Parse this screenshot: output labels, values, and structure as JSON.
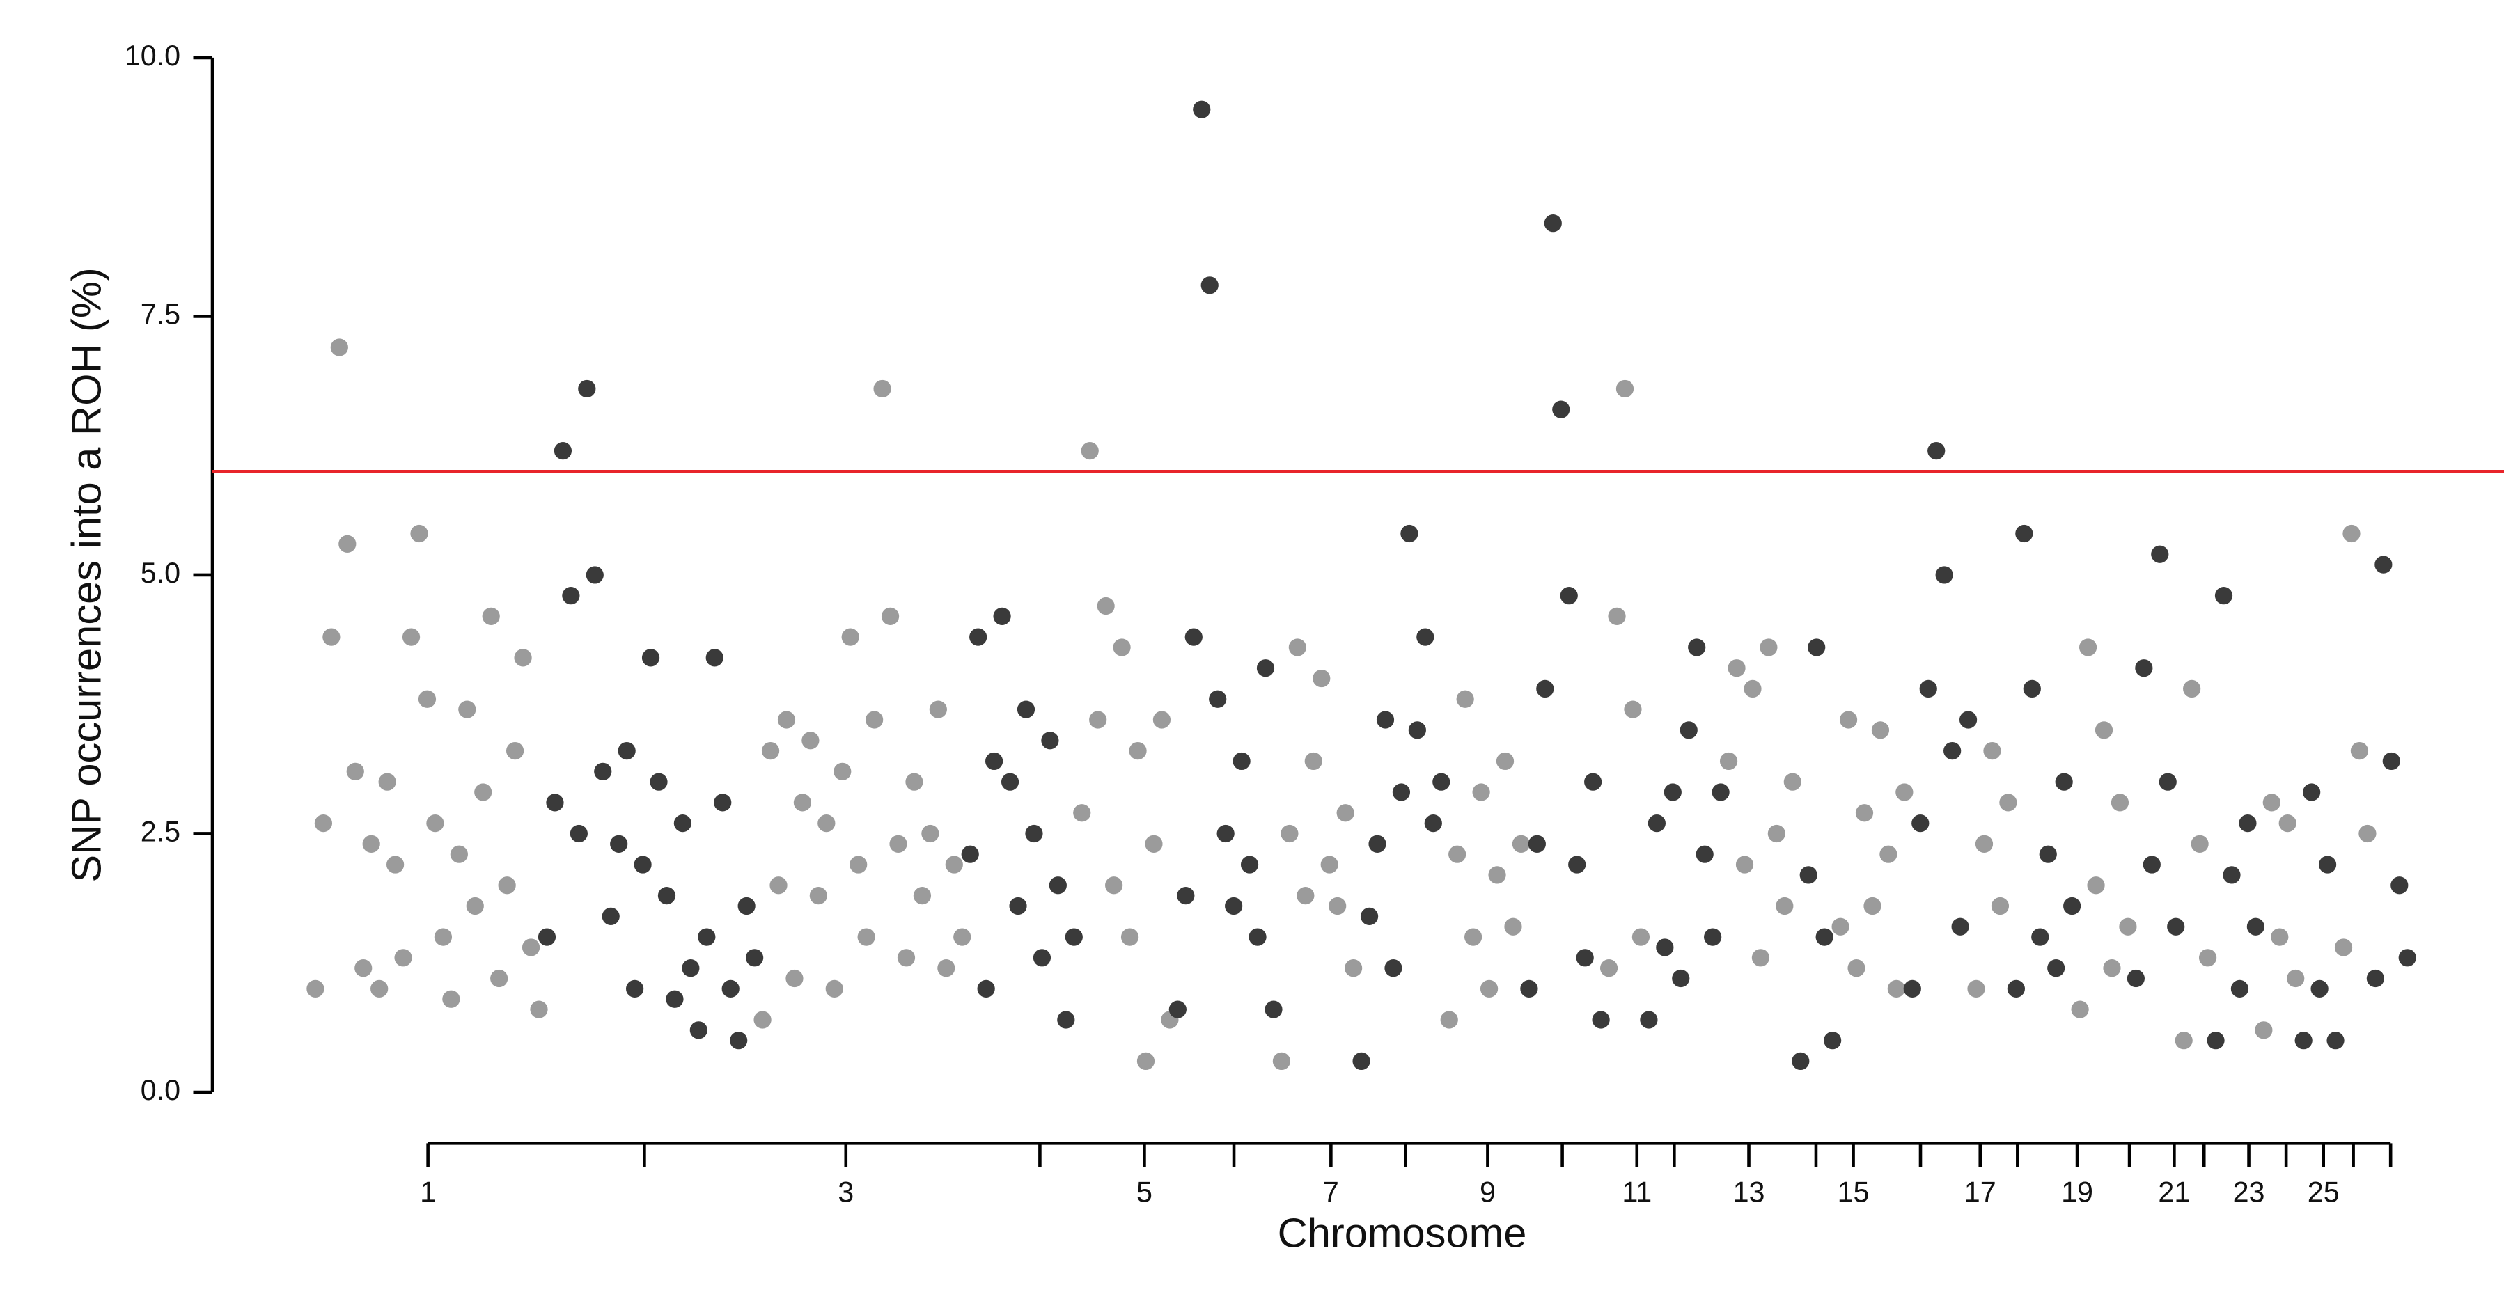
{
  "chart_data": {
    "type": "scatter",
    "ylabel": "SNP occurrences into a ROH (%)",
    "xlabel": "Chromosome",
    "categories": [
      "1",
      null,
      "3",
      null,
      "5",
      null,
      "7",
      null,
      "9",
      null,
      "11",
      null,
      "13",
      null,
      "15",
      null,
      "17",
      null,
      "19",
      null,
      "21",
      null,
      "23",
      null,
      "25",
      null
    ],
    "values": [
      [
        1.0,
        2.6,
        4.4,
        7.2,
        5.3,
        3.1,
        1.2,
        2.4,
        1.0,
        3.0,
        2.2,
        1.3,
        4.4,
        5.4,
        3.8,
        2.6,
        1.5,
        0.9,
        2.3,
        3.7,
        1.8,
        2.9,
        4.6,
        1.1,
        2.0,
        3.3,
        4.2,
        1.4,
        0.8
      ],
      [
        1.5,
        2.8,
        6.2,
        4.8,
        2.5,
        6.8,
        5.0,
        3.1,
        1.7,
        2.4,
        3.3,
        1.0,
        2.2,
        4.2,
        3.0,
        1.9,
        0.9,
        2.6,
        1.2,
        0.6,
        1.5,
        4.2,
        2.8,
        1.0,
        0.5,
        1.8,
        1.3
      ],
      [
        0.7,
        3.3,
        2.0,
        3.6,
        1.1,
        2.8,
        3.4,
        1.9,
        2.6,
        1.0,
        3.1,
        4.4,
        2.2,
        1.5,
        3.6,
        6.8,
        4.6,
        2.4,
        1.3,
        3.0,
        1.9,
        2.5,
        3.7,
        1.2,
        2.2,
        1.5
      ],
      [
        2.3,
        4.4,
        1.0,
        3.2,
        4.6,
        3.0,
        1.8,
        3.7,
        2.5,
        1.3,
        3.4,
        2.0,
        0.7,
        1.5
      ],
      [
        2.7,
        6.2,
        3.6,
        4.7,
        2.0,
        4.3,
        1.5,
        3.3,
        0.3,
        2.4,
        3.6,
        0.7
      ],
      [
        0.8,
        1.9,
        4.4,
        9.5,
        7.8,
        3.8,
        2.5,
        1.8,
        3.2,
        2.2,
        1.5,
        4.1,
        0.8
      ],
      [
        0.3,
        2.5,
        4.3,
        1.9,
        3.2,
        4.0,
        2.2,
        1.8,
        2.7,
        1.2
      ],
      [
        0.3,
        1.7,
        2.4,
        3.6,
        1.2,
        2.9,
        5.4,
        3.5,
        4.4,
        2.6,
        3.0
      ],
      [
        0.7,
        2.3,
        3.8,
        1.5,
        2.9,
        1.0,
        2.1,
        3.2,
        1.6,
        2.4
      ],
      [
        1.0,
        2.4,
        3.9,
        8.4,
        6.6,
        4.8,
        2.2,
        1.3,
        3.0,
        0.7
      ],
      [
        1.2,
        4.6,
        6.8,
        3.7,
        1.5
      ],
      [
        0.7,
        2.6,
        1.4,
        2.9,
        1.1,
        3.5,
        4.3,
        2.3,
        1.5,
        2.9
      ],
      [
        3.2,
        4.1,
        2.2,
        3.9,
        1.3,
        4.3,
        2.5,
        1.8,
        3.0
      ],
      [
        0.3,
        2.1,
        4.3,
        1.5,
        0.5
      ],
      [
        1.6,
        3.6,
        1.2,
        2.7,
        1.8,
        3.5,
        2.3,
        1.0,
        2.9
      ],
      [
        1.0,
        2.6,
        3.9,
        6.2,
        5.0,
        3.3,
        1.6,
        3.6
      ],
      [
        1.0,
        2.4,
        3.3,
        1.8,
        2.8
      ],
      [
        1.0,
        5.4,
        3.9,
        1.5,
        2.3,
        1.2,
        3.0,
        1.8
      ],
      [
        0.8,
        4.3,
        2.0,
        3.5,
        1.2,
        2.8,
        1.6
      ],
      [
        1.1,
        4.1,
        2.2,
        5.2,
        3.0,
        1.6
      ],
      [
        0.5,
        3.9,
        2.4,
        1.3
      ],
      [
        0.5,
        4.8,
        2.1,
        1.0,
        2.6,
        1.6
      ],
      [
        0.6,
        2.8,
        1.5,
        2.6,
        1.1
      ],
      [
        0.5,
        2.9,
        1.0,
        2.2,
        0.5
      ],
      [
        1.4,
        5.4,
        3.3,
        2.5
      ],
      [
        1.1,
        5.1,
        3.2,
        2.0,
        1.3
      ]
    ],
    "colors": [
      "#9b9b9b",
      "#3a3a3a"
    ],
    "ylim": [
      0,
      10
    ],
    "yticks": [
      {
        "value": 0,
        "label": "0.0"
      },
      {
        "value": 2.5,
        "label": "2.5"
      },
      {
        "value": 5,
        "label": "5.0"
      },
      {
        "value": 7.5,
        "label": "7.5"
      },
      {
        "value": 10,
        "label": "10.0"
      }
    ],
    "threshold": 6,
    "threshold_color": "#e8242a"
  }
}
